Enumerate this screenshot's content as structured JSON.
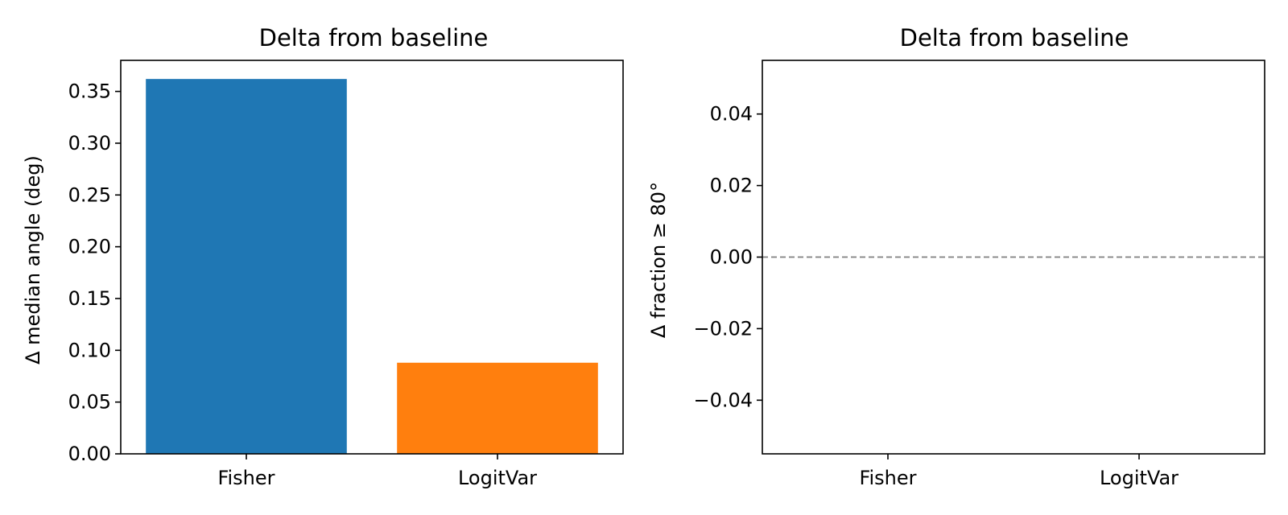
{
  "chart_data": [
    {
      "type": "bar",
      "title": "Delta from baseline",
      "xlabel": "",
      "ylabel": "Δ median angle (deg)",
      "categories": [
        "Fisher",
        "LogitVar"
      ],
      "values": [
        0.362,
        0.088
      ],
      "colors": [
        "#1f77b4",
        "#ff7f0e"
      ],
      "ylim": [
        0,
        0.38
      ],
      "yticks": [
        0.0,
        0.05,
        0.1,
        0.15,
        0.2,
        0.25,
        0.3,
        0.35
      ],
      "ytick_labels": [
        "0.00",
        "0.05",
        "0.10",
        "0.15",
        "0.20",
        "0.25",
        "0.30",
        "0.35"
      ],
      "grid": false
    },
    {
      "type": "bar",
      "title": "Delta from baseline",
      "xlabel": "",
      "ylabel": "Δ fraction ≥ 80°",
      "categories": [
        "Fisher",
        "LogitVar"
      ],
      "values": [
        0,
        0
      ],
      "colors": [
        "#1f77b4",
        "#ff7f0e"
      ],
      "ylim": [
        -0.055,
        0.055
      ],
      "yticks": [
        -0.04,
        -0.02,
        0.0,
        0.02,
        0.04
      ],
      "ytick_labels": [
        "−0.04",
        "−0.02",
        "0.00",
        "0.02",
        "0.04"
      ],
      "reference_line": {
        "y": 0,
        "style": "dashed",
        "color": "#808080"
      },
      "grid": false
    }
  ]
}
